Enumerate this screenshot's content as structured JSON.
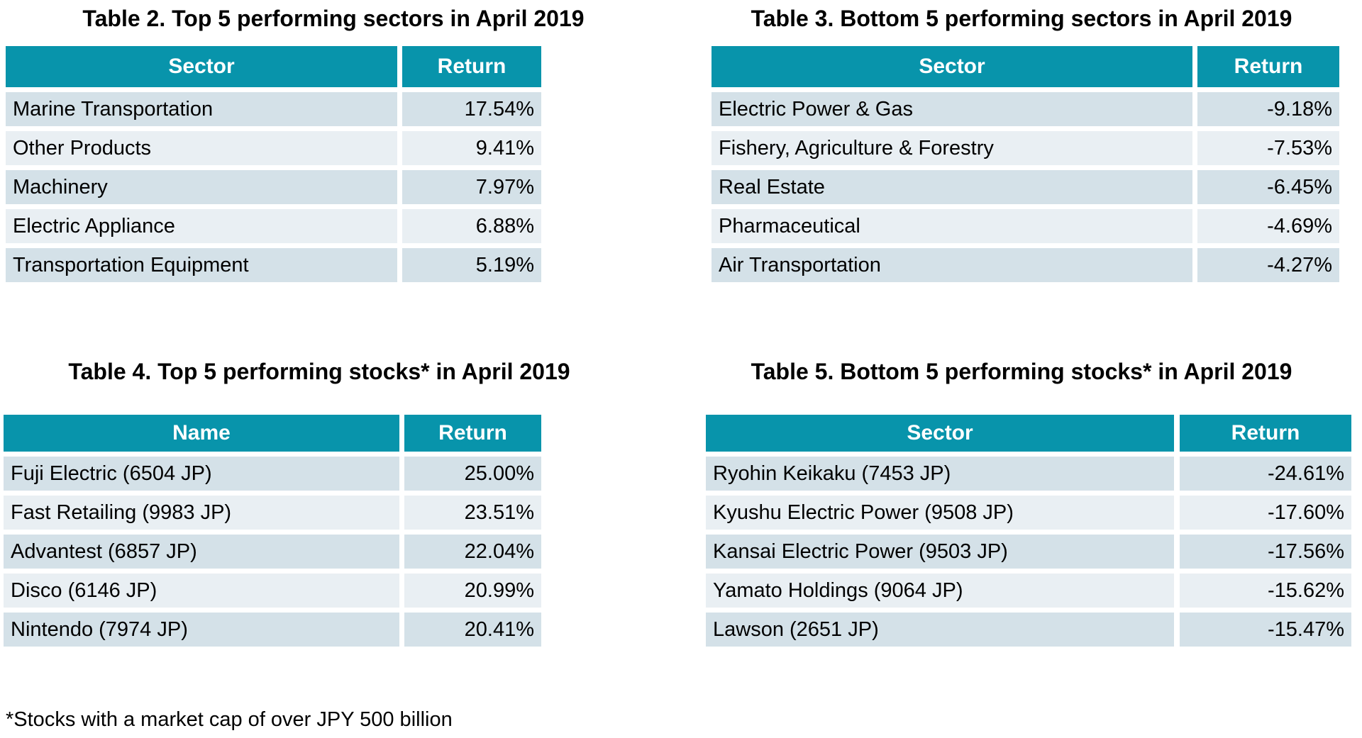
{
  "colors": {
    "header_bg": "#0894AB",
    "header_text": "#FFFFFF",
    "row_odd_bg": "#D4E1E8",
    "row_even_bg": "#E9EFF3",
    "body_text": "#000000",
    "page_bg": "#FFFFFF"
  },
  "tables": [
    {
      "title": "Table 2. Top 5 performing sectors in April 2019",
      "columns": [
        "Sector",
        "Return"
      ],
      "rows": [
        {
          "name": "Marine Transportation",
          "return": "17.54%"
        },
        {
          "name": "Other Products",
          "return": "9.41%"
        },
        {
          "name": "Machinery",
          "return": "7.97%"
        },
        {
          "name": "Electric Appliance",
          "return": "6.88%"
        },
        {
          "name": "Transportation Equipment",
          "return": "5.19%"
        }
      ]
    },
    {
      "title": "Table 3. Bottom 5 performing sectors in April 2019",
      "columns": [
        "Sector",
        "Return"
      ],
      "rows": [
        {
          "name": "Electric Power & Gas",
          "return": "-9.18%"
        },
        {
          "name": "Fishery, Agriculture & Forestry",
          "return": "-7.53%"
        },
        {
          "name": "Real Estate",
          "return": "-6.45%"
        },
        {
          "name": "Pharmaceutical",
          "return": "-4.69%"
        },
        {
          "name": "Air Transportation",
          "return": "-4.27%"
        }
      ]
    },
    {
      "title": "Table 4. Top 5 performing stocks* in April 2019",
      "columns": [
        "Name",
        "Return"
      ],
      "rows": [
        {
          "name": "Fuji Electric (6504 JP)",
          "return": "25.00%"
        },
        {
          "name": "Fast Retailing (9983 JP)",
          "return": "23.51%"
        },
        {
          "name": "Advantest (6857 JP)",
          "return": "22.04%"
        },
        {
          "name": "Disco (6146 JP)",
          "return": "20.99%"
        },
        {
          "name": "Nintendo (7974 JP)",
          "return": "20.41%"
        }
      ]
    },
    {
      "title": "Table 5. Bottom 5 performing stocks* in April 2019",
      "columns": [
        "Sector",
        "Return"
      ],
      "rows": [
        {
          "name": "Ryohin Keikaku (7453 JP)",
          "return": "-24.61%"
        },
        {
          "name": "Kyushu Electric Power (9508 JP)",
          "return": "-17.60%"
        },
        {
          "name": "Kansai Electric Power (9503 JP)",
          "return": "-17.56%"
        },
        {
          "name": "Yamato Holdings (9064 JP)",
          "return": "-15.62%"
        },
        {
          "name": "Lawson (2651 JP)",
          "return": "-15.47%"
        }
      ]
    }
  ],
  "footnote": "*Stocks with a market cap of over JPY 500 billion"
}
